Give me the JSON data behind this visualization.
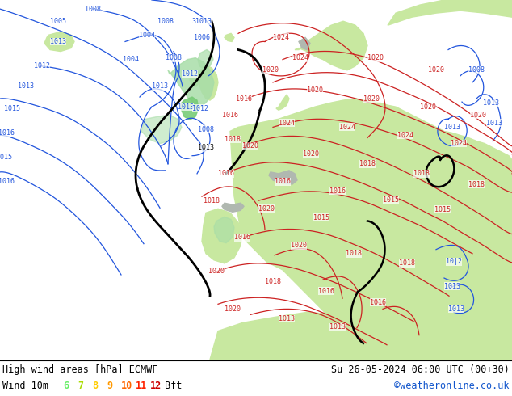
{
  "title_left": "High wind areas [hPa] ECMWF",
  "title_right": "Su 26-05-2024 06:00 UTC (00+30)",
  "subtitle_left": "Wind 10m",
  "subtitle_right": "©weatheronline.co.uk",
  "bft_numbers": [
    "6",
    "7",
    "8",
    "9",
    "10",
    "11",
    "12"
  ],
  "bft_colors": [
    "#66ee66",
    "#aadd00",
    "#ffcc00",
    "#ff9900",
    "#ff6600",
    "#ff2200",
    "#cc0000"
  ],
  "bft_label": "Bft",
  "bg_color": "#ffffff",
  "ocean_color": "#e8eef5",
  "land_color": "#c8e8a0",
  "highwind_color": "#a8dda8",
  "highwind_color2": "#78cc78",
  "mountain_color": "#b0b8b0",
  "border_color": "#000000",
  "text_color": "#000000",
  "title_fontsize": 8.5,
  "subtitle_fontsize": 8.5,
  "bft_fontsize": 8.5,
  "credit_color": "#1155cc",
  "isobar_blue": "#2255dd",
  "isobar_red": "#cc2222",
  "isobar_black": "#000000",
  "label_fontsize": 6.0,
  "figsize": [
    6.34,
    4.9
  ],
  "dpi": 100
}
